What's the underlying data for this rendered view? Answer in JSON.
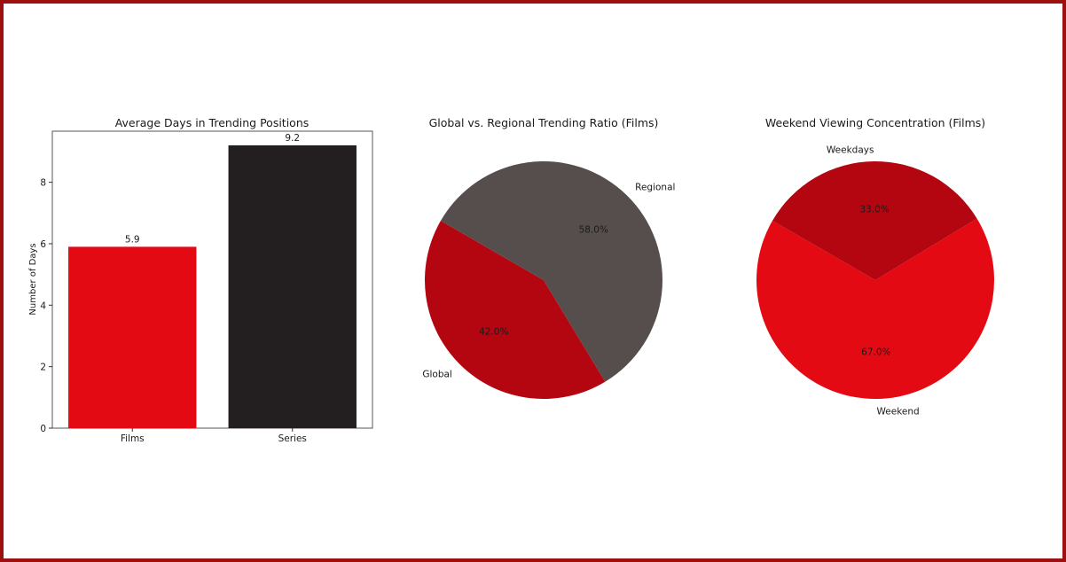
{
  "chart_data": [
    {
      "type": "bar",
      "title": "Average Days in Trending Positions",
      "categories": [
        "Films",
        "Series"
      ],
      "values": [
        5.9,
        9.2
      ],
      "value_labels": [
        "5.9",
        "9.2"
      ],
      "colors": [
        "#e30a14",
        "#231f20"
      ],
      "xlabel": "",
      "ylabel": "Number of Days",
      "ylim": [
        0,
        9.66
      ],
      "yticks": [
        0,
        2,
        4,
        6,
        8
      ],
      "ytick_labels": [
        "0",
        "2",
        "4",
        "6",
        "8"
      ],
      "grid": false
    },
    {
      "type": "pie",
      "title": "Global vs. Regional Trending Ratio (Films)",
      "labels": [
        "Global",
        "Regional"
      ],
      "values": [
        42.0,
        58.0
      ],
      "pct_labels": [
        "42.0%",
        "58.0%"
      ],
      "colors": [
        "#b30610",
        "#564d4d"
      ],
      "start_angle_deg": 150
    },
    {
      "type": "pie",
      "title": "Weekend Viewing Concentration (Films)",
      "labels": [
        "Weekend",
        "Weekdays"
      ],
      "values": [
        67.0,
        33.0
      ],
      "pct_labels": [
        "67.0%",
        "33.0%"
      ],
      "colors": [
        "#e30a14",
        "#b30610"
      ],
      "start_angle_deg": 150
    }
  ]
}
